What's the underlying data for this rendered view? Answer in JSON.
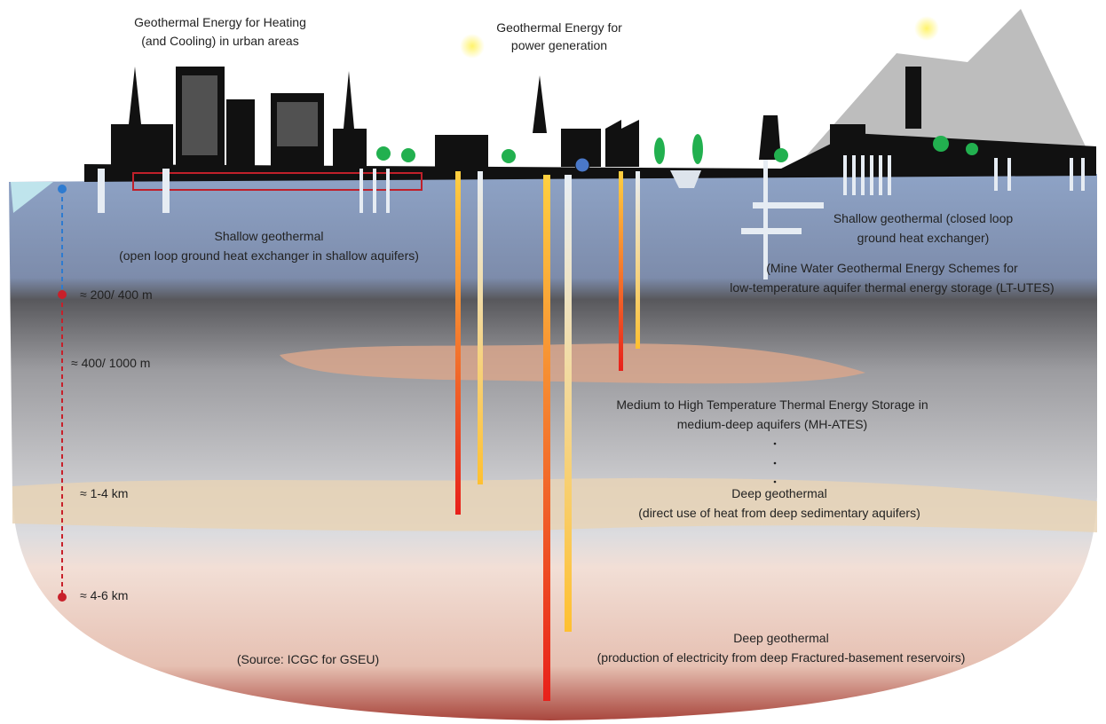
{
  "heating_title": [
    "Geothermal Energy for Heating",
    "(and Cooling) in urban areas"
  ],
  "power_title": [
    "Geothermal Energy for",
    "power generation"
  ],
  "shallow_open": [
    "Shallow geothermal",
    "(open loop ground heat exchanger in shallow aquifers)"
  ],
  "shallow_closed": [
    "Shallow geothermal (closed loop",
    "ground heat exchanger)"
  ],
  "mine_water": [
    "(Mine Water Geothermal Energy Schemes for",
    "low-temperature aquifer thermal energy storage (LT-UTES)"
  ],
  "mh_ates": [
    "Medium to High Temperature Thermal Energy Storage in",
    "medium-deep aquifers (MH-ATES)"
  ],
  "deep_direct": [
    "Deep geothermal",
    "(direct use of heat from deep sedimentary aquifers)"
  ],
  "deep_electric": [
    "Deep geothermal",
    "(production of electricity from deep Fractured-basement reservoirs)"
  ],
  "source": "(Source: ICGC for GSEU)",
  "depths": [
    "≈ 200/ 400 m",
    "≈ 400/ 1000 m",
    "≈ 1-4 km",
    "≈ 4-6 km"
  ]
}
